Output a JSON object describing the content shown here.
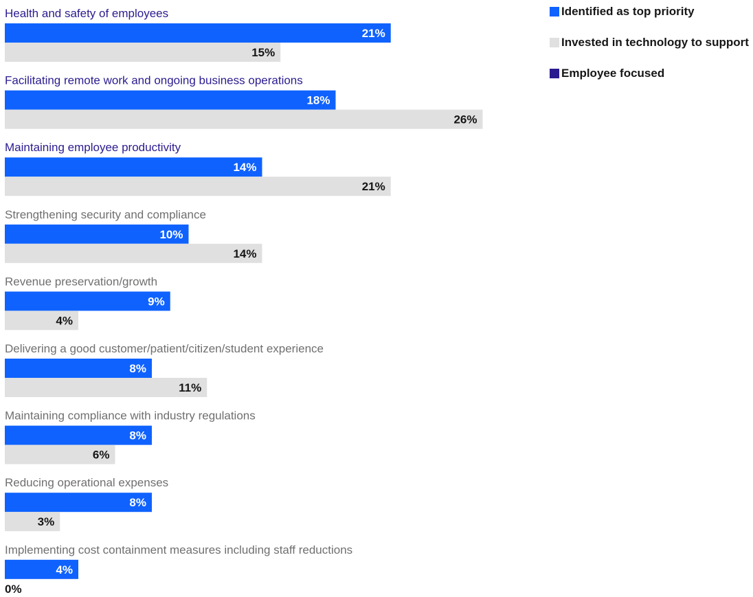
{
  "chart_data": {
    "type": "bar",
    "orientation": "horizontal",
    "categories": [
      "Health and safety of employees",
      "Facilitating remote work and ongoing business operations",
      "Maintaining employee productivity",
      "Strengthening security and compliance",
      "Revenue preservation/growth",
      "Delivering a good customer/patient/citizen/student experience",
      "Maintaining compliance with industry regulations",
      "Reducing operational expenses",
      "Implementing cost containment measures including staff reductions"
    ],
    "employee_focused": [
      true,
      true,
      true,
      false,
      false,
      false,
      false,
      false,
      false
    ],
    "series": [
      {
        "name": "Identified as top priority",
        "color": "#0f62fe",
        "label_color": "#ffffff",
        "values": [
          21,
          18,
          14,
          10,
          9,
          8,
          8,
          8,
          4
        ]
      },
      {
        "name": "Invested in technology to support",
        "color": "#e0e0e0",
        "label_color": "#161616",
        "values": [
          15,
          26,
          21,
          14,
          4,
          11,
          6,
          3,
          0
        ]
      }
    ],
    "value_suffix": "%",
    "xlim": [
      0,
      26
    ],
    "grid": false,
    "legend_position": "top-right",
    "category_label_colors": {
      "employee_focused": "#2a1b8f",
      "default": "#6f6f6f"
    }
  },
  "legend": [
    {
      "label": "Identified as top priority",
      "color": "#0f62fe"
    },
    {
      "label": "Invested in technology to support",
      "color": "#e0e0e0"
    },
    {
      "label": "Employee focused",
      "color": "#2a1b8f"
    }
  ]
}
